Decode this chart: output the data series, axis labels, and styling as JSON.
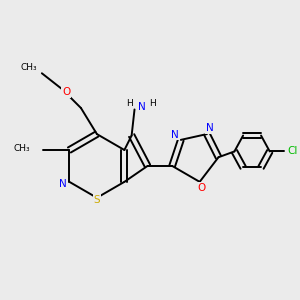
{
  "background_color": "#ebebeb",
  "colors": {
    "C": "#000000",
    "N": "#0000ff",
    "O": "#ff0000",
    "S": "#ccaa00",
    "Cl": "#00bb00",
    "H": "#000000"
  },
  "lw": 1.4,
  "fs": 7.5,
  "fs_small": 6.5
}
